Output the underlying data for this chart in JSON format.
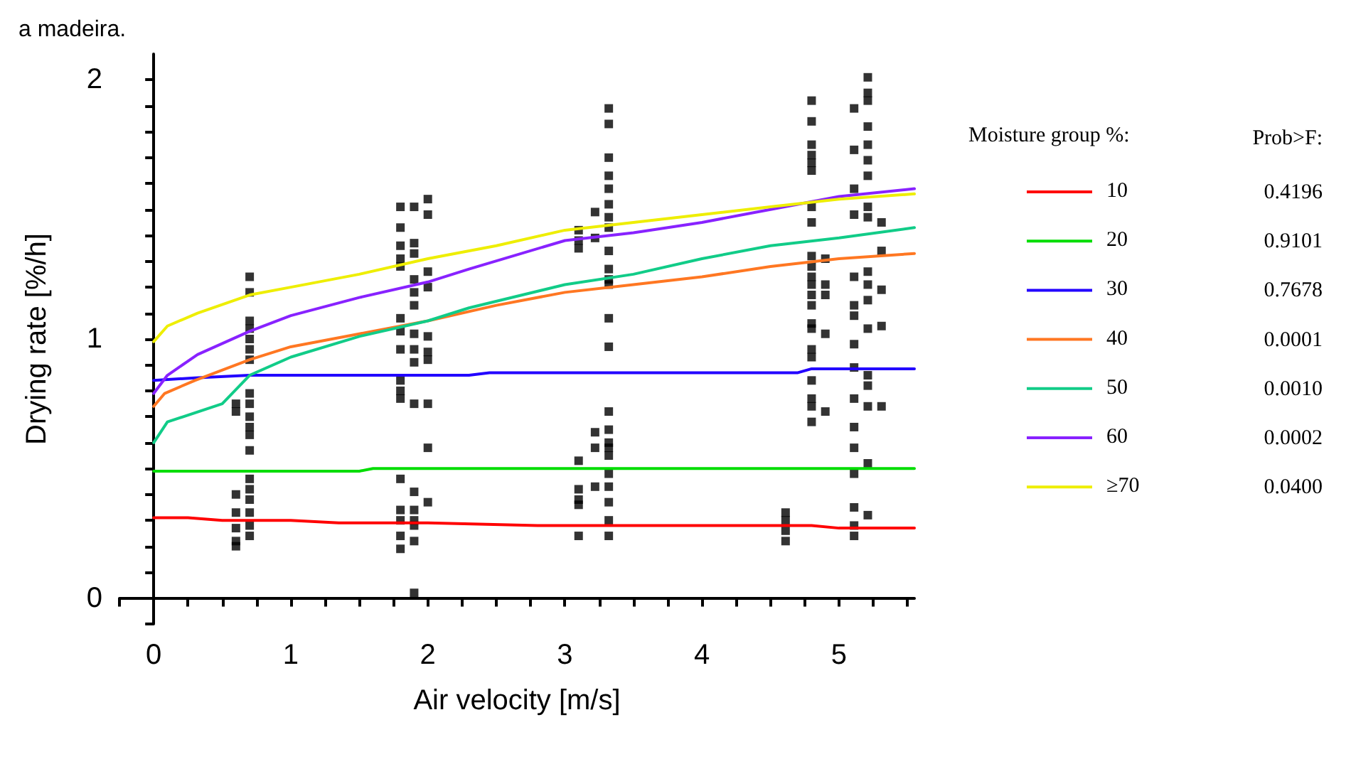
{
  "chart_data": {
    "type": "line",
    "title": "a madeira.",
    "xlabel": "Air velocity [m/s]",
    "ylabel": "Drying rate [%/h]",
    "legend_title": "Moisture group %:",
    "legend": "right",
    "grid": false,
    "marker": "none",
    "line_style": "solid",
    "xlim": [
      -0.25,
      5.55
    ],
    "ylim": [
      -0.1,
      2.1
    ],
    "xticks": [
      {
        "value": -0.25,
        "label": null
      },
      0,
      {
        "value": 0.25,
        "label": null
      },
      {
        "value": 0.5,
        "label": null
      },
      {
        "value": 0.75,
        "label": null
      },
      1,
      {
        "value": 1.25,
        "label": null
      },
      {
        "value": 1.5,
        "label": null
      },
      {
        "value": 1.75,
        "label": null
      },
      2,
      {
        "value": 2.25,
        "label": null
      },
      {
        "value": 2.5,
        "label": null
      },
      {
        "value": 2.75,
        "label": null
      },
      3,
      {
        "value": 3.25,
        "label": null
      },
      {
        "value": 3.5,
        "label": null
      },
      {
        "value": 3.75,
        "label": null
      },
      4,
      {
        "value": 4.25,
        "label": null
      },
      {
        "value": 4.5,
        "label": null
      },
      {
        "value": 4.75,
        "label": null
      },
      5,
      {
        "value": 5.25,
        "label": null
      },
      {
        "value": 5.5,
        "label": null
      }
    ],
    "yticks": [
      {
        "value": -0.1,
        "label": null
      },
      0,
      {
        "value": 0.1,
        "label": null
      },
      {
        "value": 0.2,
        "label": null
      },
      {
        "value": 0.3,
        "label": null
      },
      {
        "value": 0.4,
        "label": null
      },
      {
        "value": 0.5,
        "label": null
      },
      {
        "value": 0.6,
        "label": null
      },
      {
        "value": 0.7,
        "label": null
      },
      {
        "value": 0.8,
        "label": null
      },
      {
        "value": 0.9,
        "label": null
      },
      1,
      {
        "value": 1.1,
        "label": null
      },
      {
        "value": 1.2,
        "label": null
      },
      {
        "value": 1.3,
        "label": null
      },
      {
        "value": 1.4,
        "label": null
      },
      {
        "value": 1.5,
        "label": null
      },
      {
        "value": 1.6,
        "label": null
      },
      {
        "value": 1.7,
        "label": null
      },
      {
        "value": 1.8,
        "label": null
      },
      {
        "value": 1.9,
        "label": null
      },
      2
    ],
    "annotations": [
      "Prob>F:",
      "0.4196",
      "0.9101",
      "0.7678",
      "0.0001",
      "0.0010",
      "0.0002",
      "0.0400"
    ],
    "series": [
      {
        "type": "scatter",
        "marker": "square",
        "color": "#000000",
        "x": [
          0.6,
          0.6,
          0.6,
          0.6,
          0.6,
          0.6,
          0.6,
          0.7,
          0.7,
          0.7,
          0.7,
          0.7,
          0.7,
          0.7,
          0.7,
          0.7,
          0.7,
          0.7,
          0.7,
          0.7,
          0.7,
          0.7,
          0.7,
          0.7,
          0.7,
          0.7,
          1.8,
          1.8,
          1.8,
          1.8,
          1.8,
          1.8,
          1.8,
          1.8,
          1.8,
          1.8,
          1.8,
          1.8,
          1.8,
          1.8,
          1.8,
          1.8,
          1.9,
          1.9,
          1.9,
          1.9,
          1.9,
          1.9,
          1.9,
          1.9,
          1.9,
          1.9,
          1.9,
          1.9,
          1.9,
          1.9,
          1.9,
          1.9,
          2.0,
          2.0,
          2.0,
          2.0,
          2.0,
          2.0,
          2.0,
          2.0,
          2.0,
          2.0,
          3.1,
          3.1,
          3.1,
          3.1,
          3.1,
          3.1,
          3.1,
          3.1,
          3.22,
          3.22,
          3.22,
          3.22,
          3.22,
          3.32,
          3.32,
          3.32,
          3.32,
          3.32,
          3.32,
          3.32,
          3.32,
          3.32,
          3.32,
          3.32,
          3.32,
          3.32,
          3.32,
          3.32,
          3.32,
          3.32,
          3.32,
          3.32,
          3.32,
          3.32,
          3.32,
          3.32,
          3.32,
          4.61,
          4.61,
          4.61,
          4.61,
          4.8,
          4.8,
          4.8,
          4.8,
          4.8,
          4.8,
          4.8,
          4.8,
          4.8,
          4.8,
          4.8,
          4.8,
          4.8,
          4.8,
          4.8,
          4.8,
          4.8,
          4.8,
          4.8,
          4.8,
          4.8,
          4.8,
          4.9,
          4.9,
          4.9,
          4.9,
          4.9,
          5.11,
          5.11,
          5.11,
          5.11,
          5.11,
          5.11,
          5.11,
          5.11,
          5.11,
          5.11,
          5.11,
          5.11,
          5.11,
          5.11,
          5.11,
          5.11,
          5.21,
          5.21,
          5.21,
          5.21,
          5.21,
          5.21,
          5.21,
          5.21,
          5.21,
          5.21,
          5.21,
          5.21,
          5.21,
          5.21,
          5.21,
          5.21,
          5.21,
          5.21,
          5.31,
          5.31,
          5.31,
          5.31,
          5.31
        ],
        "values": [
          0.75,
          0.72,
          0.4,
          0.33,
          0.27,
          0.22,
          0.2,
          1.24,
          1.18,
          1.07,
          1.04,
          1.0,
          0.96,
          0.92,
          0.79,
          0.75,
          0.7,
          0.66,
          0.63,
          0.57,
          0.46,
          0.42,
          0.38,
          0.33,
          0.28,
          0.24,
          1.51,
          1.43,
          1.36,
          1.31,
          1.28,
          1.08,
          1.03,
          0.96,
          0.84,
          0.8,
          0.77,
          0.46,
          0.34,
          0.3,
          0.24,
          0.19,
          1.51,
          1.37,
          1.33,
          1.23,
          1.18,
          1.13,
          1.02,
          0.96,
          0.91,
          0.75,
          0.41,
          0.34,
          0.28,
          0.22,
          0.02,
          0.3,
          1.54,
          1.48,
          1.26,
          1.2,
          1.01,
          0.95,
          0.92,
          0.75,
          0.58,
          0.37,
          1.42,
          1.38,
          1.35,
          0.53,
          0.42,
          0.38,
          0.36,
          0.24,
          1.49,
          1.39,
          0.64,
          0.58,
          0.43,
          1.89,
          1.83,
          1.7,
          1.63,
          1.58,
          1.52,
          1.47,
          1.43,
          1.34,
          1.27,
          1.23,
          1.21,
          1.08,
          0.97,
          0.72,
          0.65,
          0.6,
          0.58,
          0.48,
          0.43,
          0.37,
          0.3,
          0.24,
          0.55,
          0.33,
          0.3,
          0.26,
          0.22,
          1.92,
          1.84,
          1.75,
          1.71,
          1.68,
          1.65,
          1.51,
          1.45,
          1.32,
          1.28,
          1.24,
          1.21,
          1.17,
          1.13,
          1.06,
          1.04,
          0.96,
          0.93,
          0.84,
          0.77,
          0.74,
          0.68,
          1.31,
          1.21,
          1.17,
          1.02,
          0.72,
          1.89,
          1.73,
          1.58,
          1.48,
          1.24,
          1.09,
          0.98,
          0.89,
          0.77,
          0.66,
          0.58,
          0.48,
          0.35,
          0.28,
          0.24,
          1.13,
          2.01,
          1.95,
          1.92,
          1.82,
          1.75,
          1.69,
          1.63,
          1.51,
          1.47,
          1.26,
          1.21,
          1.15,
          1.04,
          0.86,
          0.82,
          0.74,
          0.52,
          0.32,
          1.45,
          1.34,
          1.19,
          1.05,
          0.74
        ]
      },
      {
        "name": "10",
        "color": "#ff0000",
        "x": [
          0,
          0.25,
          0.5,
          1.0,
          1.35,
          2.0,
          2.8,
          3.5,
          4.5,
          4.8,
          5.0,
          5.55
        ],
        "values": [
          0.31,
          0.31,
          0.3,
          0.3,
          0.29,
          0.29,
          0.28,
          0.28,
          0.28,
          0.28,
          0.27,
          0.27
        ]
      },
      {
        "name": "20",
        "color": "#00dd00",
        "x": [
          0,
          1.5,
          1.6,
          5.55
        ],
        "values": [
          0.49,
          0.49,
          0.5,
          0.5
        ]
      },
      {
        "name": "30",
        "color": "#2200ff",
        "x": [
          0,
          0.3,
          0.7,
          2.3,
          2.45,
          4.7,
          4.8,
          5.55
        ],
        "values": [
          0.84,
          0.85,
          0.86,
          0.86,
          0.87,
          0.87,
          0.885,
          0.885
        ]
      },
      {
        "name": "40",
        "color": "#ff7722",
        "x": [
          0,
          0.08,
          0.3,
          0.7,
          1.0,
          1.5,
          2.0,
          2.5,
          3.0,
          3.5,
          4.0,
          4.5,
          5.0,
          5.55
        ],
        "values": [
          0.74,
          0.79,
          0.84,
          0.92,
          0.97,
          1.02,
          1.07,
          1.13,
          1.18,
          1.21,
          1.24,
          1.28,
          1.31,
          1.33
        ]
      },
      {
        "name": "50",
        "color": "#11cc88",
        "x": [
          0,
          0.1,
          0.5,
          0.7,
          1.0,
          1.5,
          2.0,
          2.3,
          3.0,
          3.5,
          4.0,
          4.5,
          5.0,
          5.55
        ],
        "values": [
          0.6,
          0.68,
          0.75,
          0.86,
          0.93,
          1.01,
          1.07,
          1.12,
          1.21,
          1.25,
          1.31,
          1.36,
          1.39,
          1.43
        ]
      },
      {
        "name": "60",
        "color": "#8822ff",
        "x": [
          0,
          0.1,
          0.32,
          0.7,
          1.0,
          1.5,
          2.0,
          2.3,
          3.0,
          3.5,
          4.0,
          4.5,
          5.0,
          5.55
        ],
        "values": [
          0.79,
          0.86,
          0.94,
          1.03,
          1.09,
          1.16,
          1.22,
          1.27,
          1.38,
          1.41,
          1.45,
          1.5,
          1.55,
          1.58
        ]
      },
      {
        "name": "≥70",
        "color": "#eeee00",
        "x": [
          0,
          0.1,
          0.32,
          0.7,
          1.0,
          1.5,
          2.0,
          2.5,
          3.0,
          3.5,
          4.0,
          4.5,
          5.0,
          5.55
        ],
        "values": [
          0.99,
          1.05,
          1.1,
          1.17,
          1.2,
          1.25,
          1.31,
          1.36,
          1.42,
          1.45,
          1.48,
          1.51,
          1.54,
          1.56
        ]
      }
    ]
  }
}
